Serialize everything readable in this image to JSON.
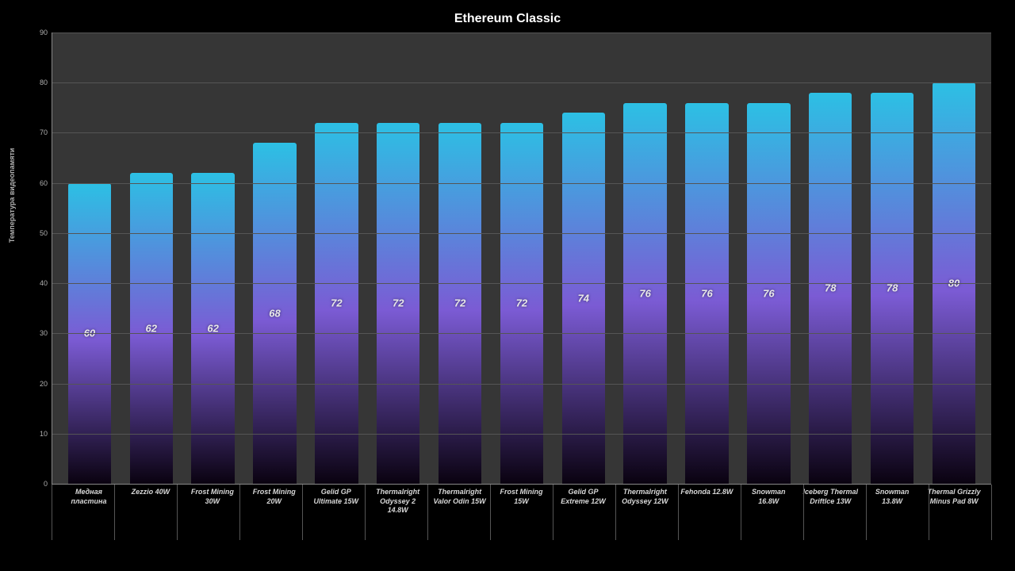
{
  "chart": {
    "type": "bar",
    "title": "Ethereum Classic",
    "title_fontsize": 16,
    "title_color": "#ffffff",
    "background_color": "#000000",
    "plot_background_color": "#363636",
    "grid_color": "#555555",
    "axis_line_color": "#888888",
    "tick_label_color": "#b0b0b0",
    "x_label_color": "#d8d8d8",
    "tick_fontsize": 9,
    "x_label_fontsize": 9,
    "x_label_fontstyle": "italic",
    "value_label_color": "#e8e8e8",
    "value_label_fontsize": 13,
    "value_label_fontstyle": "italic",
    "y_axis_label": "Температура видеопамяти",
    "y_axis_label_fontsize": 9,
    "ylim": [
      0,
      90
    ],
    "ytick_step": 10,
    "yticks": [
      0,
      10,
      20,
      30,
      40,
      50,
      60,
      70,
      80,
      90
    ],
    "bar_width": 0.7,
    "bar_gradient_top": "#2cc0e4",
    "bar_gradient_mid": "#7b5bd4",
    "bar_gradient_bottom": "#0a0210",
    "items": [
      {
        "label": "Медная\nпластина",
        "value": 60
      },
      {
        "label": "Zezzio 40W",
        "value": 62
      },
      {
        "label": "Frost Mining\n30W",
        "value": 62
      },
      {
        "label": "Frost Mining\n20W",
        "value": 68
      },
      {
        "label": "Gelid GP\nUltimate 15W",
        "value": 72
      },
      {
        "label": "Thermalright\nOdyssey 2\n14.8W",
        "value": 72
      },
      {
        "label": "Thermalright\nValor Odin 15W",
        "value": 72
      },
      {
        "label": "Frost Mining\n15W",
        "value": 72
      },
      {
        "label": "Gelid GP\nExtreme 12W",
        "value": 74
      },
      {
        "label": "Thermalright\nOdyssey 12W",
        "value": 76
      },
      {
        "label": "Fehonda 12.8W",
        "value": 76
      },
      {
        "label": "Snowman\n16.8W",
        "value": 76
      },
      {
        "label": "Iceberg Thermal\nDriftIce 13W",
        "value": 78
      },
      {
        "label": "Snowman\n13.8W",
        "value": 78
      },
      {
        "label": "Thermal Grizzly\nMinus Pad 8W",
        "value": 80
      }
    ]
  }
}
